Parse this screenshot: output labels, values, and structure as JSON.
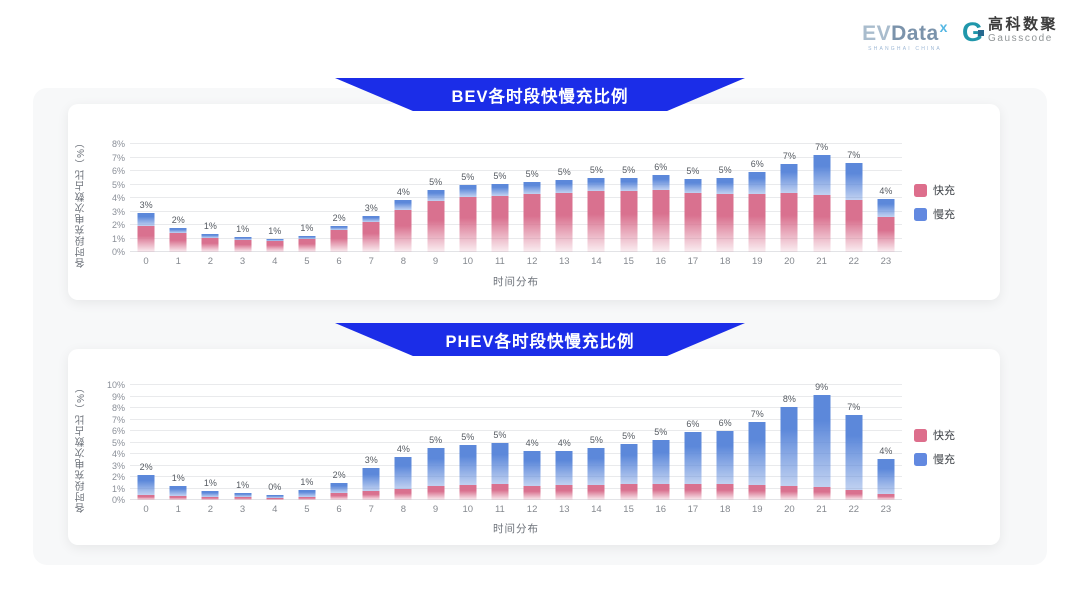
{
  "logo": {
    "evdata_ev": "EV",
    "evdata_data": "Data",
    "evdata_sup": "x",
    "evdata_sub": "SHANGHAI CHINA",
    "gauss_glyph": "G",
    "gauss_cn": "高科数聚",
    "gauss_en": "Gausscode"
  },
  "colors": {
    "fast": "#dd6e8c",
    "slow": "#6289e0",
    "banner": "#1b2de8"
  },
  "chart_data": [
    {
      "type": "bar",
      "stacked": true,
      "title": "BEV各时段快慢充比例",
      "ylabel": "各时段充电次数占比（%）",
      "xlabel": "时间分布",
      "ylim": [
        0,
        8
      ],
      "ytick_step": 1,
      "grid": true,
      "legend_position": "right",
      "categories": [
        "0",
        "1",
        "2",
        "3",
        "4",
        "5",
        "6",
        "7",
        "8",
        "9",
        "10",
        "11",
        "12",
        "13",
        "14",
        "15",
        "16",
        "17",
        "18",
        "19",
        "20",
        "21",
        "22",
        "23"
      ],
      "bar_total_labels": [
        "3%",
        "2%",
        "1%",
        "1%",
        "1%",
        "1%",
        "2%",
        "3%",
        "4%",
        "5%",
        "5%",
        "5%",
        "5%",
        "5%",
        "5%",
        "5%",
        "6%",
        "5%",
        "5%",
        "6%",
        "7%",
        "7%",
        "7%",
        "4%"
      ],
      "series": [
        {
          "name": "快充",
          "color": "#dd6e8c",
          "values": [
            1.95,
            1.4,
            1.05,
            0.9,
            0.85,
            0.95,
            1.6,
            2.2,
            3.1,
            3.75,
            4.05,
            4.15,
            4.3,
            4.4,
            4.55,
            4.5,
            4.6,
            4.35,
            4.3,
            4.3,
            4.4,
            4.25,
            3.85,
            2.6
          ]
        },
        {
          "name": "慢充",
          "color": "#6289e0",
          "values": [
            0.95,
            0.4,
            0.25,
            0.2,
            0.1,
            0.2,
            0.3,
            0.5,
            0.75,
            0.85,
            0.9,
            0.9,
            0.9,
            0.9,
            0.9,
            0.95,
            1.1,
            1.05,
            1.15,
            1.6,
            2.1,
            2.95,
            2.75,
            1.3
          ]
        }
      ]
    },
    {
      "type": "bar",
      "stacked": true,
      "title": "PHEV各时段快慢充比例",
      "ylabel": "各时段充电次数占比（%）",
      "xlabel": "时间分布",
      "ylim": [
        0,
        10
      ],
      "ytick_step": 1,
      "grid": true,
      "legend_position": "right",
      "categories": [
        "0",
        "1",
        "2",
        "3",
        "4",
        "5",
        "6",
        "7",
        "8",
        "9",
        "10",
        "11",
        "12",
        "13",
        "14",
        "15",
        "16",
        "17",
        "18",
        "19",
        "20",
        "21",
        "22",
        "23"
      ],
      "bar_total_labels": [
        "2%",
        "1%",
        "1%",
        "1%",
        "0%",
        "1%",
        "2%",
        "3%",
        "4%",
        "5%",
        "5%",
        "5%",
        "4%",
        "4%",
        "5%",
        "5%",
        "5%",
        "6%",
        "6%",
        "7%",
        "8%",
        "9%",
        "7%",
        "4%"
      ],
      "series": [
        {
          "name": "快充",
          "color": "#dd6e8c",
          "values": [
            0.45,
            0.35,
            0.3,
            0.25,
            0.2,
            0.3,
            0.6,
            0.75,
            0.95,
            1.2,
            1.3,
            1.35,
            1.25,
            1.3,
            1.3,
            1.4,
            1.35,
            1.4,
            1.4,
            1.3,
            1.2,
            1.1,
            0.9,
            0.55
          ]
        },
        {
          "name": "慢充",
          "color": "#6289e0",
          "values": [
            1.75,
            0.85,
            0.5,
            0.35,
            0.25,
            0.55,
            0.9,
            2.0,
            2.75,
            3.35,
            3.45,
            3.6,
            3.05,
            3.0,
            3.25,
            3.45,
            3.85,
            4.5,
            4.6,
            5.5,
            6.9,
            8.0,
            6.5,
            3.05
          ]
        }
      ]
    }
  ]
}
